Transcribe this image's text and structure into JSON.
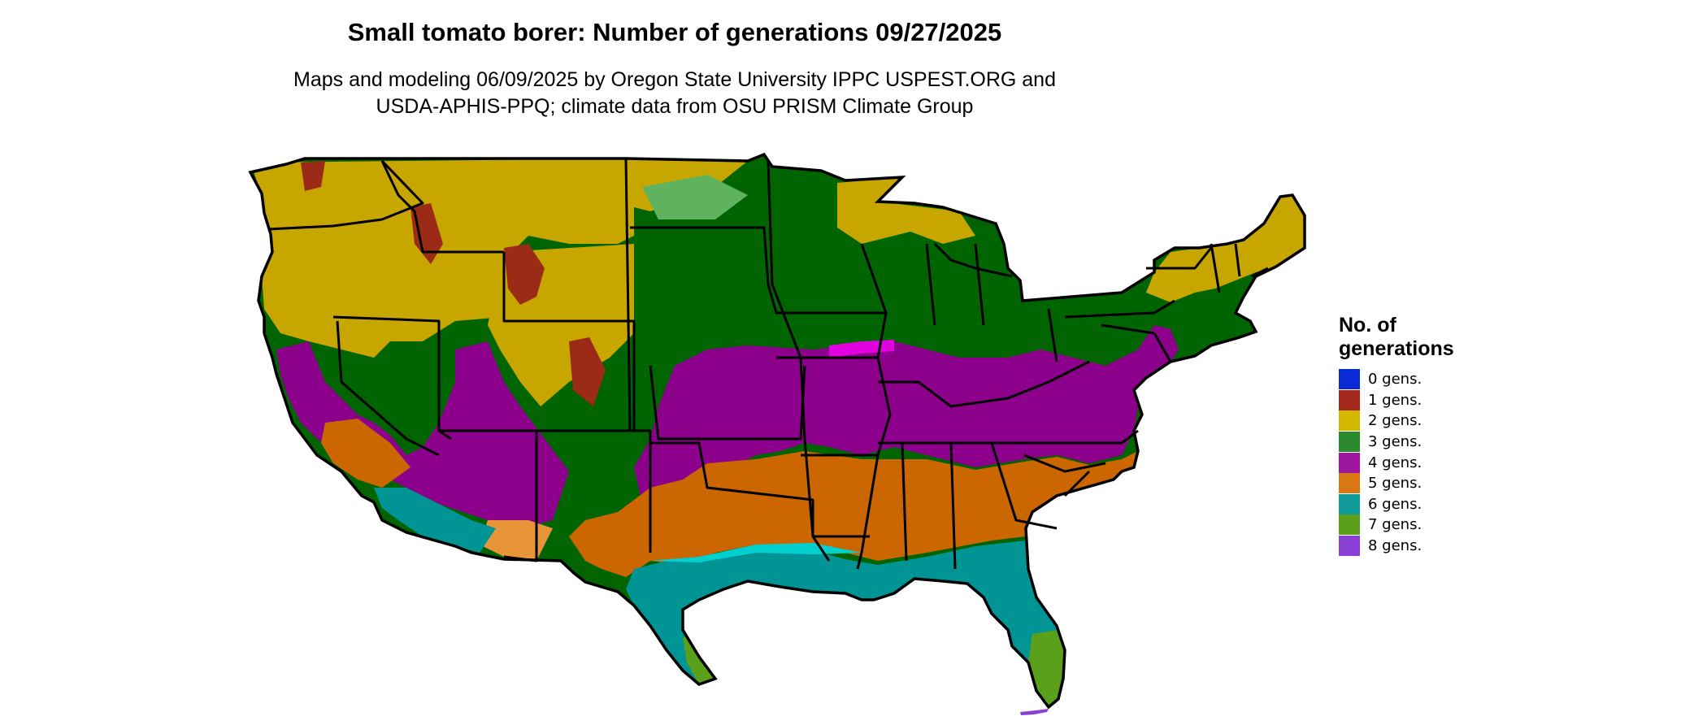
{
  "title": "Small tomato borer: Number of generations 09/27/2025",
  "subtitle_line1": "Maps and modeling 06/09/2025 by Oregon State University IPPC USPEST.ORG and",
  "subtitle_line2": "USDA-APHIS-PPQ; climate data from OSU PRISM Climate Group",
  "legend": {
    "title_line1": "No. of",
    "title_line2": "generations",
    "items": [
      {
        "label": "0 gens.",
        "color": "#0a2ad6"
      },
      {
        "label": "1 gens.",
        "color": "#a3271a"
      },
      {
        "label": "2 gens.",
        "color": "#d4b800"
      },
      {
        "label": "3 gens.",
        "color": "#2b8a2e"
      },
      {
        "label": "4 gens.",
        "color": "#a0179f"
      },
      {
        "label": "5 gens.",
        "color": "#d97713"
      },
      {
        "label": "6 gens.",
        "color": "#119a9a"
      },
      {
        "label": "7 gens.",
        "color": "#5aa01a"
      },
      {
        "label": "8 gens.",
        "color": "#8a3fd6"
      }
    ]
  },
  "map_colors": {
    "gen1": "#9b2a16",
    "gen2": "#c8a600",
    "gen3": "#006400",
    "gen3_light": "#5fb35f",
    "gen4": "#8c008c",
    "gen4_light": "#e000e0",
    "gen5": "#cc6600",
    "gen5_light": "#e8953a",
    "gen6": "#009494",
    "gen6_light": "#00d0d0",
    "gen7": "#5aa01a",
    "gen8": "#8a3fd6",
    "border": "#000000"
  }
}
